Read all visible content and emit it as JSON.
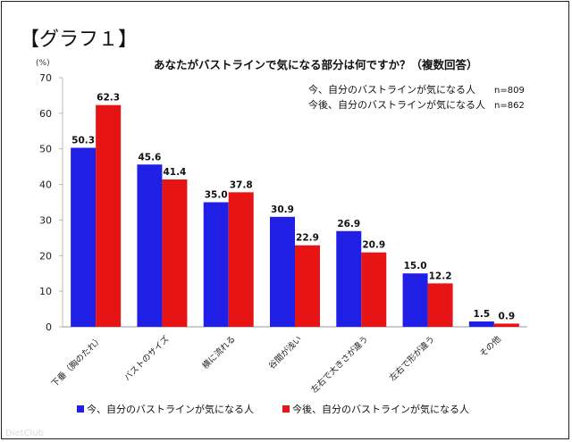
{
  "heading": "【グラフ１】",
  "watermark": "DietClub",
  "chart_data": {
    "type": "bar",
    "title": "あなたがバストラインで気になる部分は何ですか？（複数回答）",
    "ylabel": "(%)",
    "ylim": [
      0,
      70
    ],
    "yticks": [
      0,
      10,
      20,
      30,
      40,
      50,
      60,
      70
    ],
    "grid": false,
    "legend_placement": "bottom",
    "categories": [
      "下垂（胸のたれ）",
      "バストのサイズ",
      "横に流れる",
      "谷間が浅い",
      "左右で大きさが違う",
      "左右で形が違う",
      "その他"
    ],
    "series": [
      {
        "name": "今、自分のバストラインが気になる人",
        "color": "#1f1fe6",
        "values": [
          50.3,
          45.6,
          35.0,
          30.9,
          26.9,
          15.0,
          1.5
        ]
      },
      {
        "name": "今後、自分のバストラインが気になる人",
        "color": "#e61414",
        "values": [
          62.3,
          41.4,
          37.8,
          22.9,
          20.9,
          12.2,
          0.9
        ]
      }
    ],
    "annotations": [
      {
        "label": "今、自分のバストラインが気になる人",
        "n": "n=809"
      },
      {
        "label": "今後、自分のバストラインが気になる人",
        "n": "n=862"
      }
    ]
  }
}
